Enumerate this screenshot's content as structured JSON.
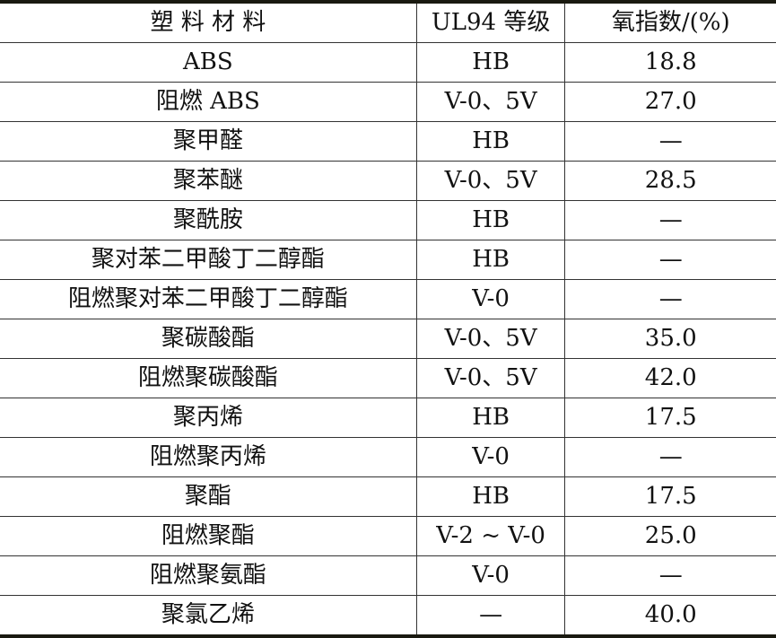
{
  "table": {
    "headers": [
      "塑 料 材 料",
      "UL94 等级",
      "氧指数/(%)"
    ],
    "rows": [
      [
        "ABS",
        "HB",
        "18.8"
      ],
      [
        "阻燃 ABS",
        "V-0、5V",
        "27.0"
      ],
      [
        "聚甲醛",
        "HB",
        "—"
      ],
      [
        "聚苯醚",
        "V-0、5V",
        "28.5"
      ],
      [
        "聚酰胺",
        "HB",
        "—"
      ],
      [
        "聚对苯二甲酸丁二醇酯",
        "HB",
        "—"
      ],
      [
        "阻燃聚对苯二甲酸丁二醇酯",
        "V-0",
        "—"
      ],
      [
        "聚碳酸酯",
        "V-0、5V",
        "35.0"
      ],
      [
        "阻燃聚碳酸酯",
        "V-0、5V",
        "42.0"
      ],
      [
        "聚丙烯",
        "HB",
        "17.5"
      ],
      [
        "阻燃聚丙烯",
        "V-0",
        "—"
      ],
      [
        "聚酯",
        "HB",
        "17.5"
      ],
      [
        "阻燃聚酯",
        "V-2 ~ V-0",
        "25.0"
      ],
      [
        "阻燃聚氨酯",
        "V-0",
        "—"
      ],
      [
        "聚氯乙烯",
        "—",
        "40.0"
      ]
    ]
  }
}
